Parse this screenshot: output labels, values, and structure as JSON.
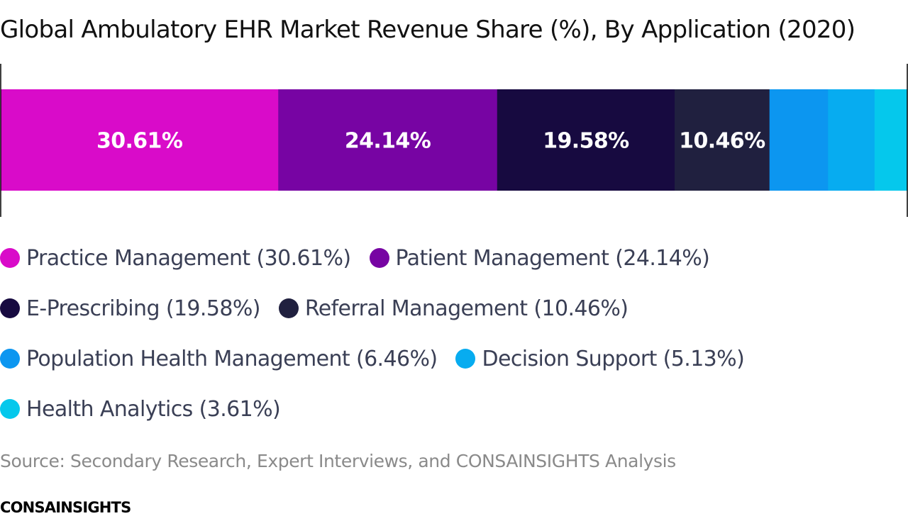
{
  "chart_data": {
    "type": "bar",
    "orientation": "horizontal-stacked",
    "title": "Global Ambulatory EHR Market Revenue Share (%), By Application (2020)",
    "categories": [
      "Practice Management",
      "Patient Management",
      "E-Prescribing",
      "Referral Management",
      "Population Health Management",
      "Decision Support",
      "Health Analytics"
    ],
    "values": [
      30.61,
      24.14,
      19.58,
      10.46,
      6.46,
      5.13,
      3.61
    ],
    "data_labels": [
      "30.61%",
      "24.14%",
      "19.58%",
      "10.46%",
      "",
      "",
      ""
    ],
    "legend_labels": [
      "Practice Management (30.61%)",
      "Patient Management (24.14%)",
      "E-Prescribing (19.58%)",
      "Referral Management (10.46%)",
      "Population Health Management (6.46%)",
      "Decision Support (5.13%)",
      "Health Analytics (3.61%)"
    ],
    "colors": [
      "#d90bc9",
      "#7704a3",
      "#170a40",
      "#20203f",
      "#0c96f0",
      "#07acf0",
      "#05c8ec"
    ],
    "legend_placement": "bottom",
    "grid": false
  },
  "source": "Source: Secondary Research, Expert Interviews, and CONSAINSIGHTS Analysis",
  "brand": "CONSAINSIGHTS"
}
